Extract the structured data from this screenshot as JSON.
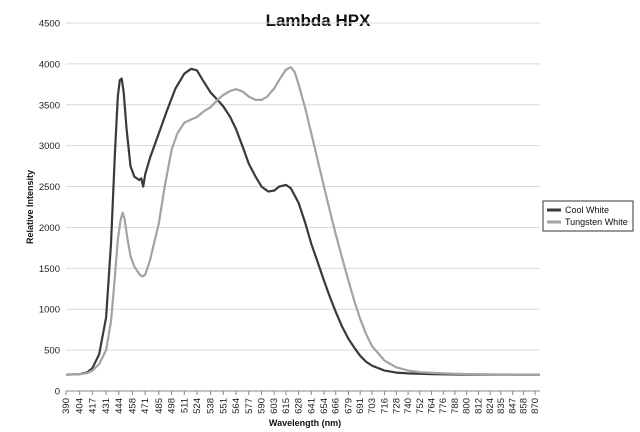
{
  "chart_data": {
    "type": "line",
    "title": "Lambda HPX",
    "xlabel": "Wavelength (nm)",
    "ylabel": "Relative Intensity",
    "ylim": [
      0,
      4500
    ],
    "yticks": [
      0,
      500,
      1000,
      1500,
      2000,
      2500,
      3000,
      3500,
      4000,
      4500
    ],
    "xlim": [
      390,
      875
    ],
    "xticks": [
      390,
      404,
      417,
      431,
      444,
      458,
      471,
      485,
      498,
      511,
      524,
      538,
      551,
      564,
      577,
      590,
      603,
      615,
      628,
      641,
      654,
      666,
      679,
      691,
      703,
      716,
      728,
      740,
      752,
      764,
      776,
      788,
      800,
      812,
      824,
      835,
      847,
      858,
      870
    ],
    "grid": "horizontal",
    "legend": "right",
    "series": [
      {
        "name": "Cool White",
        "color": "#3a3a3a",
        "points": [
          [
            390,
            200
          ],
          [
            404,
            205
          ],
          [
            412,
            230
          ],
          [
            417,
            280
          ],
          [
            424,
            450
          ],
          [
            431,
            900
          ],
          [
            436,
            1800
          ],
          [
            440,
            2900
          ],
          [
            443,
            3600
          ],
          [
            445,
            3800
          ],
          [
            447,
            3820
          ],
          [
            449,
            3650
          ],
          [
            452,
            3200
          ],
          [
            456,
            2750
          ],
          [
            460,
            2620
          ],
          [
            465,
            2580
          ],
          [
            467,
            2600
          ],
          [
            469,
            2500
          ],
          [
            471,
            2650
          ],
          [
            476,
            2850
          ],
          [
            485,
            3150
          ],
          [
            494,
            3450
          ],
          [
            502,
            3700
          ],
          [
            511,
            3880
          ],
          [
            518,
            3940
          ],
          [
            524,
            3920
          ],
          [
            530,
            3800
          ],
          [
            538,
            3650
          ],
          [
            545,
            3560
          ],
          [
            551,
            3480
          ],
          [
            558,
            3350
          ],
          [
            564,
            3200
          ],
          [
            571,
            2980
          ],
          [
            577,
            2780
          ],
          [
            584,
            2620
          ],
          [
            590,
            2500
          ],
          [
            597,
            2440
          ],
          [
            603,
            2450
          ],
          [
            608,
            2500
          ],
          [
            615,
            2520
          ],
          [
            620,
            2480
          ],
          [
            628,
            2300
          ],
          [
            635,
            2050
          ],
          [
            641,
            1800
          ],
          [
            648,
            1560
          ],
          [
            654,
            1350
          ],
          [
            660,
            1150
          ],
          [
            666,
            970
          ],
          [
            672,
            800
          ],
          [
            679,
            640
          ],
          [
            685,
            530
          ],
          [
            691,
            430
          ],
          [
            697,
            360
          ],
          [
            703,
            310
          ],
          [
            716,
            250
          ],
          [
            728,
            225
          ],
          [
            740,
            215
          ],
          [
            764,
            205
          ],
          [
            800,
            200
          ],
          [
            870,
            200
          ],
          [
            875,
            200
          ]
        ]
      },
      {
        "name": "Tungsten White",
        "color": "#a3a3a3",
        "points": [
          [
            390,
            200
          ],
          [
            404,
            205
          ],
          [
            412,
            220
          ],
          [
            417,
            250
          ],
          [
            424,
            330
          ],
          [
            431,
            500
          ],
          [
            436,
            850
          ],
          [
            440,
            1400
          ],
          [
            443,
            1850
          ],
          [
            446,
            2100
          ],
          [
            448,
            2180
          ],
          [
            450,
            2100
          ],
          [
            453,
            1850
          ],
          [
            456,
            1650
          ],
          [
            460,
            1520
          ],
          [
            465,
            1430
          ],
          [
            468,
            1400
          ],
          [
            471,
            1420
          ],
          [
            476,
            1600
          ],
          [
            485,
            2050
          ],
          [
            491,
            2500
          ],
          [
            498,
            2950
          ],
          [
            504,
            3150
          ],
          [
            511,
            3280
          ],
          [
            518,
            3320
          ],
          [
            524,
            3350
          ],
          [
            531,
            3420
          ],
          [
            538,
            3470
          ],
          [
            545,
            3560
          ],
          [
            551,
            3620
          ],
          [
            558,
            3670
          ],
          [
            564,
            3690
          ],
          [
            571,
            3660
          ],
          [
            577,
            3600
          ],
          [
            584,
            3560
          ],
          [
            590,
            3560
          ],
          [
            596,
            3600
          ],
          [
            603,
            3700
          ],
          [
            608,
            3800
          ],
          [
            615,
            3930
          ],
          [
            620,
            3960
          ],
          [
            624,
            3900
          ],
          [
            628,
            3750
          ],
          [
            635,
            3450
          ],
          [
            641,
            3150
          ],
          [
            648,
            2800
          ],
          [
            654,
            2500
          ],
          [
            660,
            2200
          ],
          [
            666,
            1920
          ],
          [
            672,
            1650
          ],
          [
            679,
            1350
          ],
          [
            685,
            1100
          ],
          [
            691,
            880
          ],
          [
            697,
            700
          ],
          [
            703,
            550
          ],
          [
            716,
            370
          ],
          [
            728,
            290
          ],
          [
            740,
            250
          ],
          [
            752,
            230
          ],
          [
            776,
            215
          ],
          [
            800,
            207
          ],
          [
            835,
            202
          ],
          [
            870,
            200
          ],
          [
            875,
            200
          ]
        ]
      }
    ]
  }
}
